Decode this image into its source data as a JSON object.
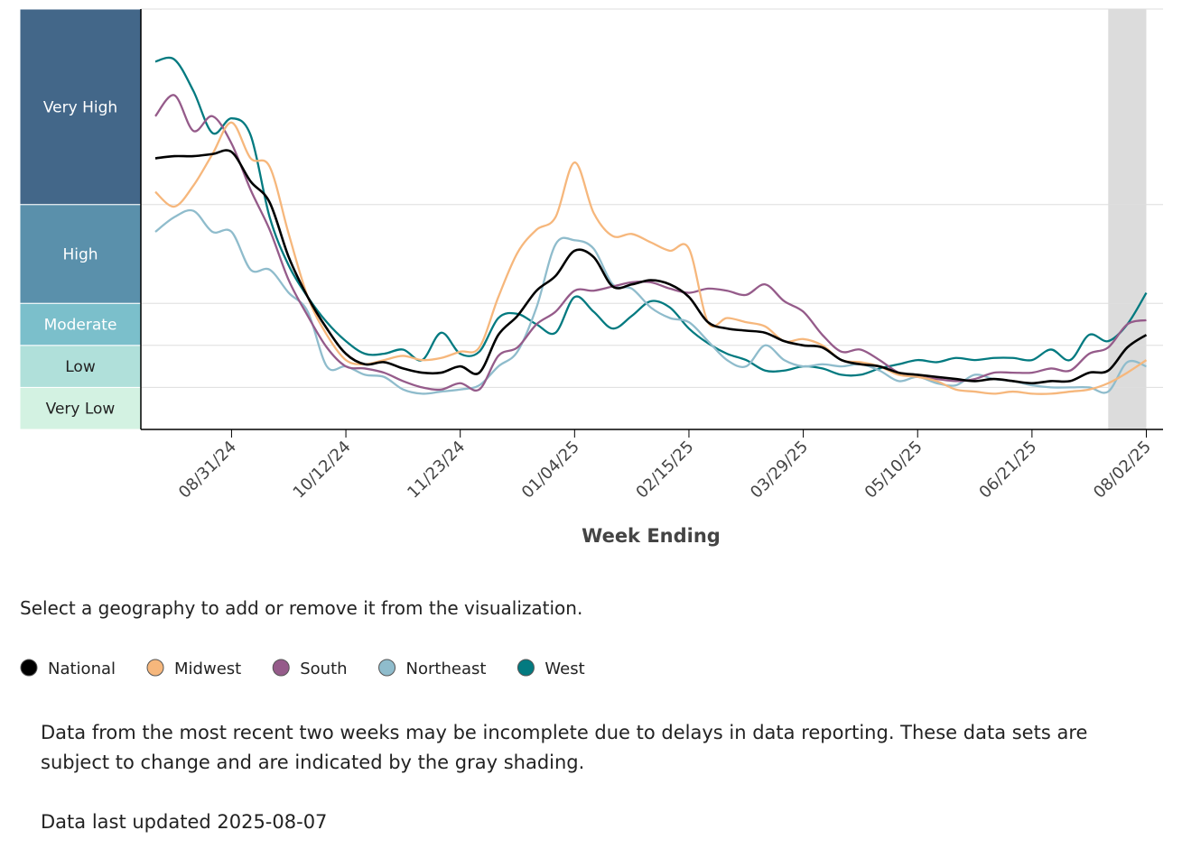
{
  "chart_data": {
    "type": "line",
    "x_title": "Week Ending",
    "x": [
      "08/03/24",
      "08/10/24",
      "08/17/24",
      "08/24/24",
      "08/31/24",
      "09/07/24",
      "09/14/24",
      "09/21/24",
      "09/28/24",
      "10/05/24",
      "10/12/24",
      "10/19/24",
      "10/26/24",
      "11/02/24",
      "11/09/24",
      "11/16/24",
      "11/23/24",
      "11/30/24",
      "12/07/24",
      "12/14/24",
      "12/21/24",
      "12/28/24",
      "01/04/25",
      "01/11/25",
      "01/18/25",
      "01/25/25",
      "02/01/25",
      "02/08/25",
      "02/15/25",
      "02/22/25",
      "03/01/25",
      "03/08/25",
      "03/15/25",
      "03/22/25",
      "03/29/25",
      "04/05/25",
      "04/12/25",
      "04/19/25",
      "04/26/25",
      "05/03/25",
      "05/10/25",
      "05/17/25",
      "05/24/25",
      "05/31/25",
      "06/07/25",
      "06/14/25",
      "06/21/25",
      "06/28/25",
      "07/05/25",
      "07/12/25",
      "07/19/25",
      "07/26/25",
      "08/02/25"
    ],
    "xticks": [
      "08/31/24",
      "10/12/24",
      "11/23/24",
      "01/04/25",
      "02/15/25",
      "03/29/25",
      "05/10/25",
      "06/21/25",
      "08/02/25"
    ],
    "ylim": [
      0,
      20
    ],
    "bands": [
      {
        "label": "Very Low",
        "from": 0,
        "to": 2,
        "color": "#d3f2e2",
        "text_color": "#222222"
      },
      {
        "label": "Low",
        "from": 2,
        "to": 4,
        "color": "#b0e0da",
        "text_color": "#222222"
      },
      {
        "label": "Moderate",
        "from": 4,
        "to": 6,
        "color": "#7bbfcb",
        "text_color": "#ffffff"
      },
      {
        "label": "High",
        "from": 6,
        "to": 10.7,
        "color": "#5a90ab",
        "text_color": "#ffffff"
      },
      {
        "label": "Very High",
        "from": 10.7,
        "to": 20,
        "color": "#436789",
        "text_color": "#ffffff"
      }
    ],
    "shaded_x": [
      "07/19/25",
      "08/02/25"
    ],
    "series": [
      {
        "name": "National",
        "color": "#000000",
        "values": [
          12.9,
          13.0,
          13.0,
          13.1,
          13.2,
          11.8,
          10.8,
          8.2,
          6.3,
          4.8,
          3.6,
          3.1,
          3.2,
          2.9,
          2.7,
          2.7,
          3.0,
          2.7,
          4.5,
          5.4,
          6.6,
          7.3,
          8.5,
          8.2,
          6.8,
          6.9,
          7.1,
          6.9,
          6.3,
          5.1,
          4.8,
          4.7,
          4.6,
          4.2,
          4.0,
          3.9,
          3.3,
          3.1,
          3.0,
          2.7,
          2.6,
          2.5,
          2.4,
          2.3,
          2.4,
          2.3,
          2.2,
          2.3,
          2.3,
          2.7,
          2.8,
          3.9,
          4.5
        ]
      },
      {
        "name": "Midwest",
        "color": "#f6b77c",
        "values": [
          11.3,
          10.6,
          11.6,
          13.1,
          14.6,
          12.9,
          12.5,
          9.3,
          6.3,
          4.5,
          3.3,
          3.1,
          3.3,
          3.5,
          3.3,
          3.4,
          3.7,
          3.9,
          6.3,
          8.4,
          9.5,
          10.1,
          12.7,
          10.3,
          9.2,
          9.3,
          8.9,
          8.5,
          8.6,
          5.1,
          5.3,
          5.1,
          4.9,
          4.2,
          4.3,
          4.0,
          3.3,
          3.2,
          3.0,
          2.6,
          2.5,
          2.3,
          1.9,
          1.8,
          1.7,
          1.8,
          1.7,
          1.7,
          1.8,
          1.9,
          2.2,
          2.7,
          3.3
        ]
      },
      {
        "name": "South",
        "color": "#955b8a",
        "values": [
          14.9,
          15.9,
          14.2,
          14.9,
          13.6,
          11.4,
          9.5,
          7.1,
          5.4,
          3.9,
          3.0,
          2.9,
          2.7,
          2.3,
          2.0,
          1.9,
          2.2,
          1.9,
          3.5,
          3.9,
          5.0,
          5.6,
          6.6,
          6.6,
          6.8,
          7.0,
          7.0,
          6.7,
          6.5,
          6.7,
          6.6,
          6.4,
          6.9,
          6.1,
          5.6,
          4.5,
          3.7,
          3.8,
          3.3,
          2.7,
          2.5,
          2.4,
          2.3,
          2.4,
          2.7,
          2.7,
          2.7,
          2.9,
          2.8,
          3.6,
          3.9,
          5.0,
          5.2
        ]
      },
      {
        "name": "Northeast",
        "color": "#8fbccc",
        "values": [
          9.4,
          10.1,
          10.4,
          9.4,
          9.4,
          7.6,
          7.6,
          6.5,
          5.6,
          3.0,
          3.0,
          2.6,
          2.5,
          1.9,
          1.7,
          1.8,
          1.9,
          2.1,
          3.0,
          3.7,
          5.8,
          8.8,
          9.0,
          8.6,
          6.9,
          6.7,
          5.8,
          5.3,
          5.1,
          4.2,
          3.3,
          3.0,
          4.0,
          3.3,
          3.0,
          3.1,
          3.0,
          3.1,
          2.8,
          2.3,
          2.5,
          2.2,
          2.1,
          2.6,
          2.4,
          2.3,
          2.1,
          2.0,
          2.0,
          2.0,
          1.8,
          3.2,
          3.0
        ]
      },
      {
        "name": "West",
        "color": "#037a80",
        "values": [
          17.5,
          17.6,
          16.1,
          14.1,
          14.8,
          14.0,
          10.1,
          7.8,
          6.3,
          5.1,
          4.2,
          3.6,
          3.6,
          3.8,
          3.3,
          4.6,
          3.6,
          3.7,
          5.3,
          5.5,
          5.0,
          4.6,
          6.3,
          5.6,
          4.8,
          5.4,
          6.1,
          5.8,
          4.8,
          4.1,
          3.6,
          3.3,
          2.8,
          2.8,
          3.0,
          2.9,
          2.6,
          2.6,
          2.9,
          3.1,
          3.3,
          3.2,
          3.4,
          3.3,
          3.4,
          3.4,
          3.3,
          3.8,
          3.3,
          4.5,
          4.2,
          5.0,
          6.5
        ]
      }
    ]
  },
  "instructions": "Select a geography to add or remove it from the visualization.",
  "notes": [
    "Data from the most recent two weeks may be incomplete due to delays in data reporting. These data sets are subject to change and are indicated by the gray shading.",
    "Data last updated 2025-08-07"
  ]
}
